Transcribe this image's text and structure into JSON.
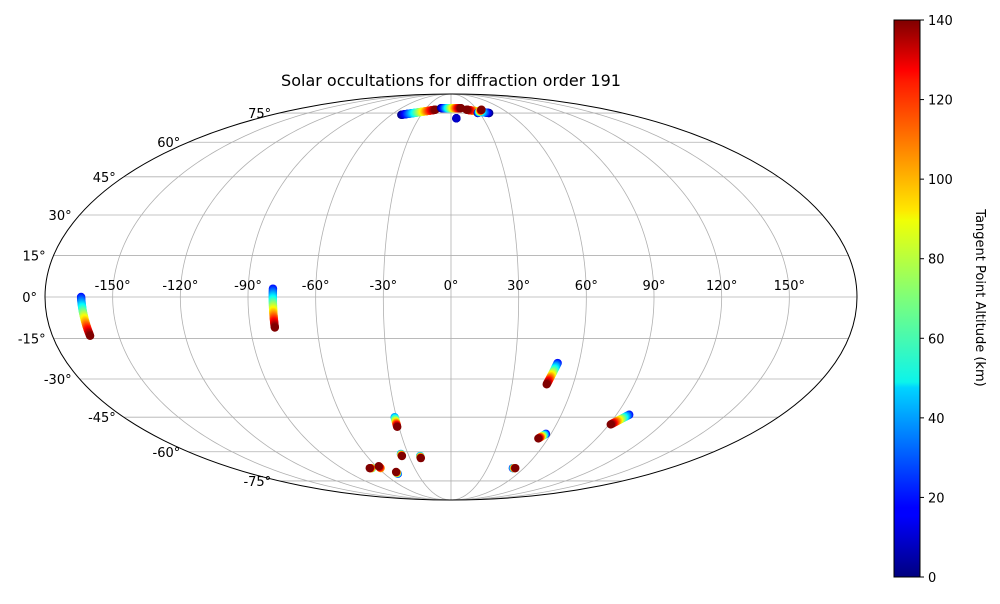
{
  "chart_data": {
    "type": "scatter",
    "projection": "mollweide",
    "title": "Solar occultations for diffraction order 191",
    "x_ticks": [
      "-150°",
      "-120°",
      "-90°",
      "-60°",
      "-30°",
      "0°",
      "30°",
      "60°",
      "90°",
      "120°",
      "150°"
    ],
    "x_tick_values": [
      -150,
      -120,
      -90,
      -60,
      -30,
      0,
      30,
      60,
      90,
      120,
      150
    ],
    "y_ticks": [
      "-75°",
      "-60°",
      "-45°",
      "-30°",
      "-15°",
      "0°",
      "15°",
      "30°",
      "45°",
      "60°",
      "75°"
    ],
    "y_tick_values": [
      -75,
      -60,
      -45,
      -30,
      -15,
      0,
      15,
      30,
      45,
      60,
      75
    ],
    "xlim": [
      -180,
      180
    ],
    "ylim": [
      -90,
      90
    ],
    "grid": true,
    "colorbar": {
      "label": "Tangent Point Altitude (km)",
      "colormap": "jet",
      "range": [
        0,
        140
      ],
      "ticks": [
        "0",
        "20",
        "40",
        "60",
        "80",
        "100",
        "120",
        "140"
      ],
      "tick_values": [
        0,
        20,
        40,
        60,
        80,
        100,
        120,
        140
      ]
    },
    "tracks": [
      {
        "lon_start": -50,
        "lat_start": 74,
        "lon_end": -18,
        "lat_end": 77,
        "alt_start": 0,
        "alt_end": 140
      },
      {
        "lon_start": -12,
        "lat_start": 78,
        "lon_end": 12,
        "lat_end": 78,
        "alt_start": 0,
        "alt_end": 140
      },
      {
        "lon_start": 40,
        "lat_start": 75,
        "lon_end": 18,
        "lat_end": 77,
        "alt_start": 0,
        "alt_end": 140
      },
      {
        "lon_start": 28,
        "lat_start": 75,
        "lon_end": 35,
        "lat_end": 77,
        "alt_start": 0,
        "alt_end": 140
      },
      {
        "lon_start": 5,
        "lat_start": 72,
        "lon_end": 5,
        "lat_end": 72,
        "alt_start": 0,
        "alt_end": 10
      },
      {
        "lon_start": -164,
        "lat_start": 0,
        "lon_end": -163,
        "lat_end": -14,
        "alt_start": 20,
        "alt_end": 140
      },
      {
        "lon_start": -79,
        "lat_start": 3,
        "lon_end": -79,
        "lat_end": -11,
        "alt_start": 20,
        "alt_end": 140
      },
      {
        "lon_start": 50,
        "lat_start": -24,
        "lon_end": 47,
        "lat_end": -32,
        "alt_start": 20,
        "alt_end": 140
      },
      {
        "lon_start": 97,
        "lat_start": -44,
        "lon_end": 91,
        "lat_end": -48,
        "alt_start": 20,
        "alt_end": 140
      },
      {
        "lon_start": 57,
        "lat_start": -52,
        "lon_end": 54,
        "lat_end": -54,
        "alt_start": 20,
        "alt_end": 140
      },
      {
        "lon_start": 51,
        "lat_start": -68,
        "lon_end": 53,
        "lat_end": -68,
        "alt_start": 20,
        "alt_end": 140
      },
      {
        "lon_start": -31,
        "lat_start": -45,
        "lon_end": -31,
        "lat_end": -49,
        "alt_start": 40,
        "alt_end": 140
      },
      {
        "lon_start": -35,
        "lat_start": -61,
        "lon_end": -35,
        "lat_end": -62,
        "alt_start": 40,
        "alt_end": 140
      },
      {
        "lon_start": -22,
        "lat_start": -62,
        "lon_end": -22,
        "lat_end": -63,
        "alt_start": 40,
        "alt_end": 140
      },
      {
        "lon_start": -65,
        "lat_start": -68,
        "lon_end": -67,
        "lat_end": -68,
        "alt_start": 60,
        "alt_end": 140
      },
      {
        "lon_start": -58,
        "lat_start": -68,
        "lon_end": -58,
        "lat_end": -67,
        "alt_start": 100,
        "alt_end": 140
      },
      {
        "lon_start": -48,
        "lat_start": -71,
        "lon_end": -48,
        "lat_end": -70,
        "alt_start": 20,
        "alt_end": 140
      }
    ]
  }
}
